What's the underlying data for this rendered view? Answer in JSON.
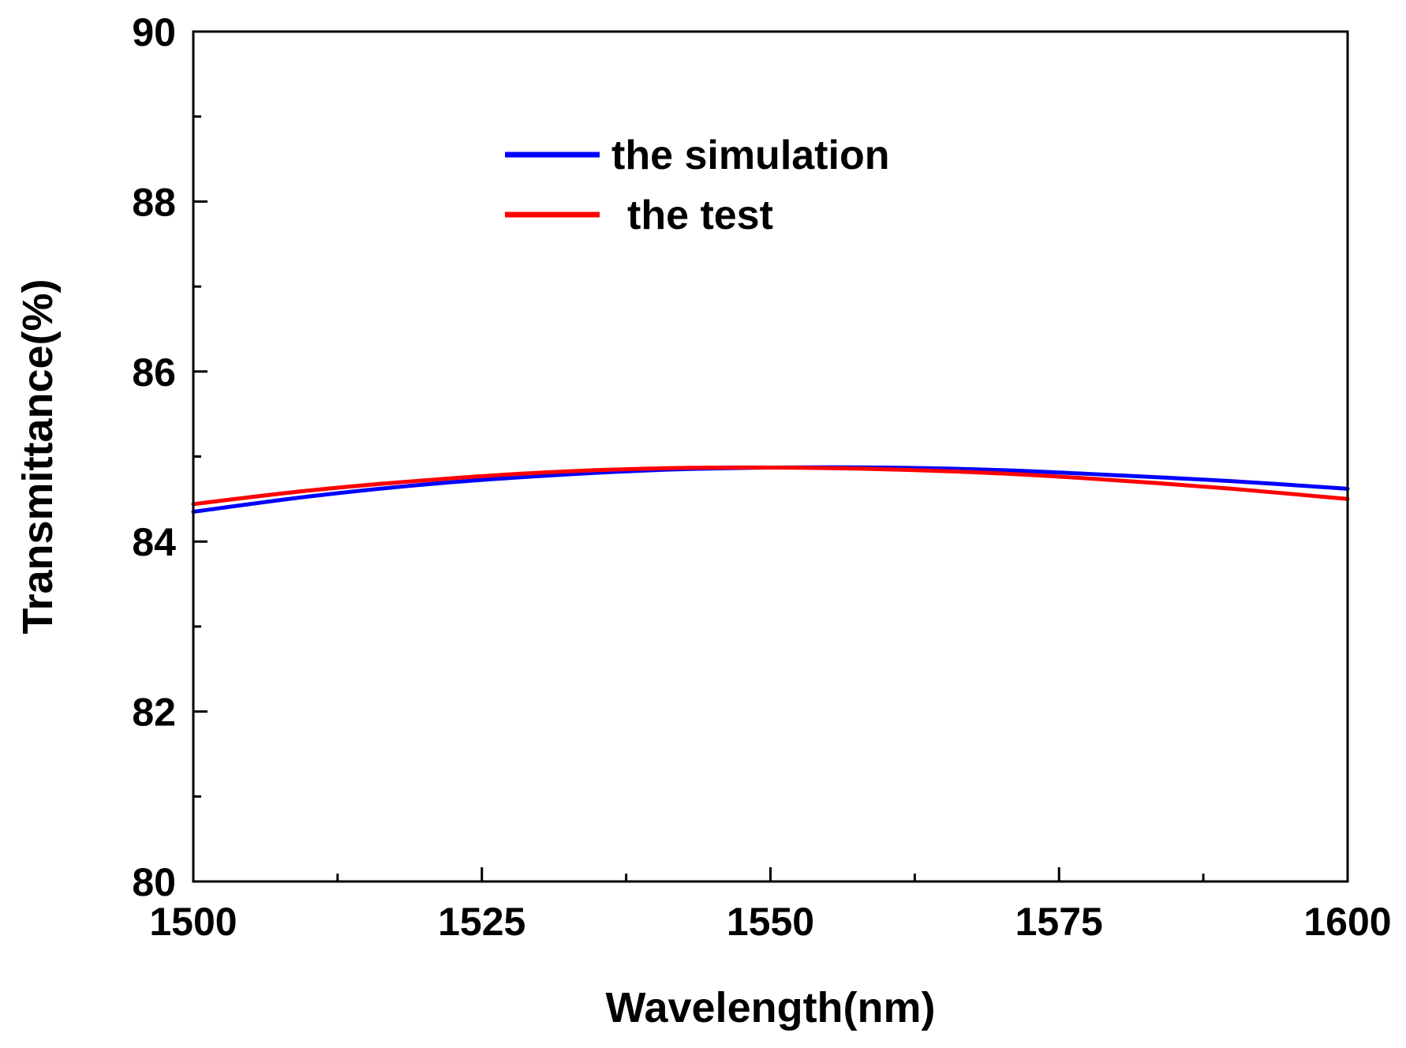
{
  "chart_data": {
    "type": "line",
    "xlabel": "Wavelength(nm)",
    "ylabel": "Transmittance(%)",
    "xlim": [
      1500,
      1600
    ],
    "ylim": [
      80,
      90
    ],
    "x_ticks": [
      1500,
      1525,
      1550,
      1575,
      1600
    ],
    "x_tick_labels": [
      "1500",
      "1525",
      "1550",
      "1575",
      "1600"
    ],
    "y_ticks": [
      80,
      82,
      84,
      86,
      88,
      90
    ],
    "y_tick_labels": [
      "80",
      "82",
      "84",
      "86",
      "88",
      "90"
    ],
    "x_minor_step": 12.5,
    "y_minor_step": 1,
    "grid": false,
    "legend_position": "top-center",
    "series": [
      {
        "name": "the simulation",
        "color": "#0000ff",
        "x": [
          1500,
          1510,
          1520,
          1530,
          1540,
          1550,
          1560,
          1570,
          1580,
          1590,
          1600
        ],
        "y": [
          84.35,
          84.53,
          84.67,
          84.77,
          84.84,
          84.87,
          84.87,
          84.84,
          84.78,
          84.71,
          84.62
        ]
      },
      {
        "name": "the test",
        "color": "#ff0000",
        "x": [
          1500,
          1510,
          1520,
          1530,
          1540,
          1550,
          1560,
          1570,
          1580,
          1590,
          1600
        ],
        "y": [
          84.44,
          84.6,
          84.72,
          84.81,
          84.86,
          84.87,
          84.85,
          84.8,
          84.72,
          84.62,
          84.5
        ]
      }
    ]
  }
}
